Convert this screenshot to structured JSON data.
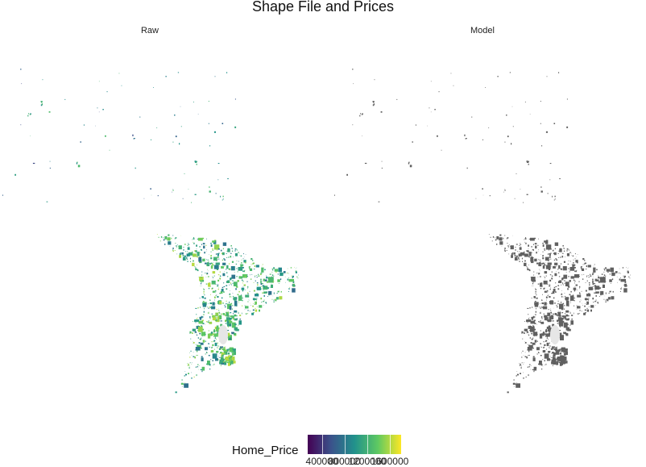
{
  "title": "Shape File and Prices",
  "panels": [
    {
      "label": "Raw",
      "fill_mode": "viridis"
    },
    {
      "label": "Model",
      "fill_mode": "gray",
      "fill_color": "#606060"
    }
  ],
  "legend": {
    "title": "Home_Price",
    "tick_labels": [
      "400000",
      "800000",
      "1200000",
      "1600000"
    ],
    "tick_values": [
      400000,
      800000,
      1200000,
      1600000
    ],
    "range": [
      150000,
      1800000
    ],
    "colors": [
      "#440154",
      "#3b528b",
      "#21918c",
      "#5ec962",
      "#fde725"
    ]
  }
}
